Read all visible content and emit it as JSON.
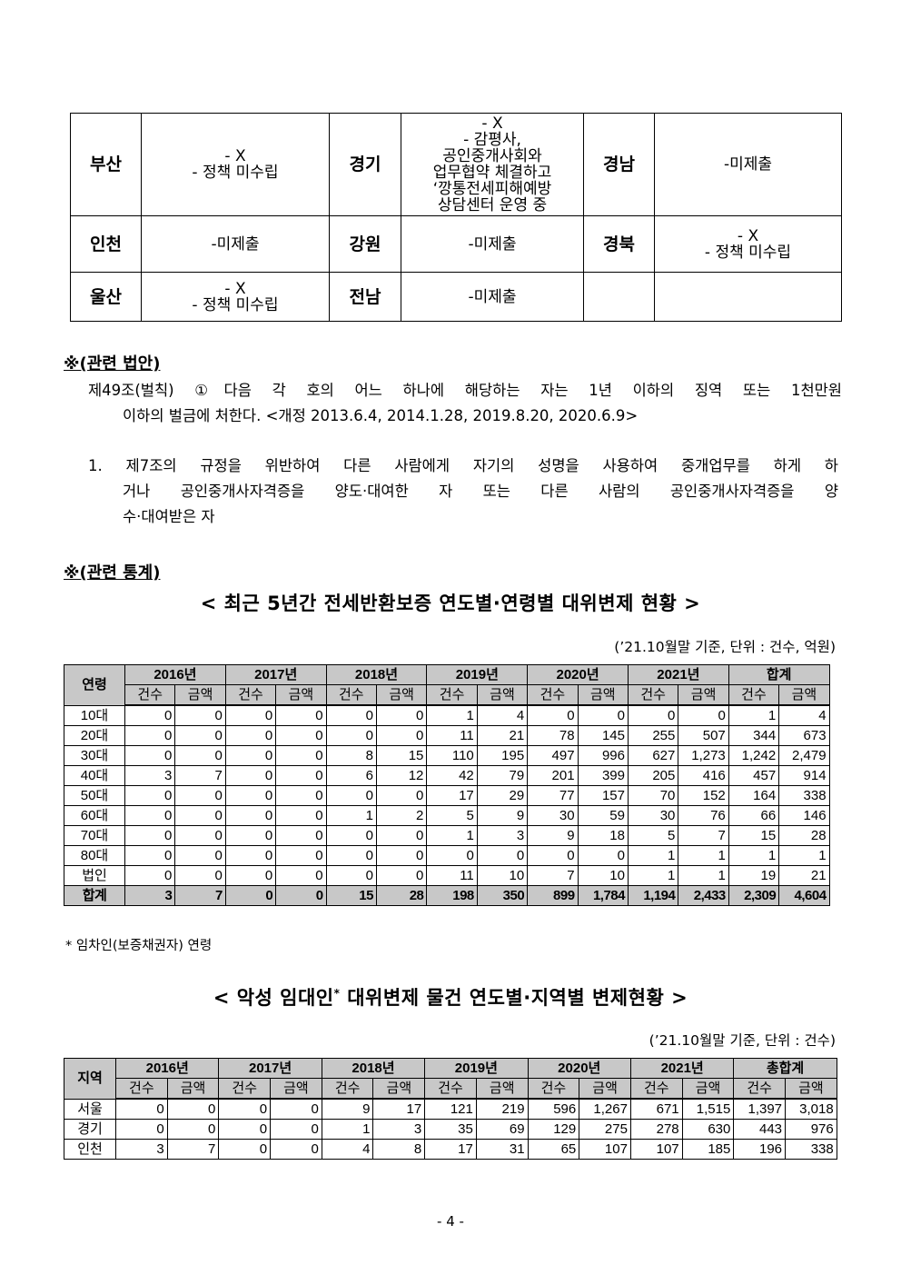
{
  "region_table": {
    "rows": [
      [
        {
          "name": "부산",
          "text": "- X\n- 정책 미수립"
        },
        {
          "name": "경기",
          "text": "- X\n- 감평사,\n공인중개사회와\n업무협약 체결하고\n‘깡통전세피해예방\n상담센터 운영 중"
        },
        {
          "name": "경남",
          "text": "-미제출"
        }
      ],
      [
        {
          "name": "인천",
          "text": "-미제출"
        },
        {
          "name": "강원",
          "text": "-미제출"
        },
        {
          "name": "경북",
          "text": "- X\n- 정책 미수립"
        }
      ],
      [
        {
          "name": "울산",
          "text": "- X\n- 정책 미수립"
        },
        {
          "name": "전남",
          "text": "-미제출"
        },
        {
          "name": "",
          "text": ""
        }
      ]
    ]
  },
  "law_section": {
    "heading": "※(관련 법안)",
    "article_line1": "제49조(벌칙) ①다음 각 호의 어느 하나에 해당하는 자는 1년 이하의 징역 또는 1천만원",
    "article_line2": "이하의 벌금에 처한다. <개정 2013.6.4, 2014.1.28, 2019.8.20, 2020.6.9>",
    "item_line1": "1. 제7조의 규정을 위반하여 다른 사람에게 자기의 성명을 사용하여 중개업무를 하게 하",
    "item_line2": "거나 공인중개사자격증을 양도·대여한 자 또는 다른 사람의 공인중개사자격증을 양",
    "item_line3": "수·대여받은 자"
  },
  "stats_section": {
    "heading": "※(관련 통계)"
  },
  "table1": {
    "title": "< 최근 5년간 전세반환보증 연도별·연령별 대위변제 현황 >",
    "note": "(’21.10월말 기준, 단위 : 건수, 억원)",
    "corner": "연령",
    "years": [
      "2016년",
      "2017년",
      "2018년",
      "2019년",
      "2020년",
      "2021년",
      "합계"
    ],
    "sub": [
      "건수",
      "금액"
    ],
    "rows": [
      [
        "10대",
        "0",
        "0",
        "0",
        "0",
        "0",
        "0",
        "1",
        "4",
        "0",
        "0",
        "0",
        "0",
        "1",
        "4"
      ],
      [
        "20대",
        "0",
        "0",
        "0",
        "0",
        "0",
        "0",
        "11",
        "21",
        "78",
        "145",
        "255",
        "507",
        "344",
        "673"
      ],
      [
        "30대",
        "0",
        "0",
        "0",
        "0",
        "8",
        "15",
        "110",
        "195",
        "497",
        "996",
        "627",
        "1,273",
        "1,242",
        "2,479"
      ],
      [
        "40대",
        "3",
        "7",
        "0",
        "0",
        "6",
        "12",
        "42",
        "79",
        "201",
        "399",
        "205",
        "416",
        "457",
        "914"
      ],
      [
        "50대",
        "0",
        "0",
        "0",
        "0",
        "0",
        "0",
        "17",
        "29",
        "77",
        "157",
        "70",
        "152",
        "164",
        "338"
      ],
      [
        "60대",
        "0",
        "0",
        "0",
        "0",
        "1",
        "2",
        "5",
        "9",
        "30",
        "59",
        "30",
        "76",
        "66",
        "146"
      ],
      [
        "70대",
        "0",
        "0",
        "0",
        "0",
        "0",
        "0",
        "1",
        "3",
        "9",
        "18",
        "5",
        "7",
        "15",
        "28"
      ],
      [
        "80대",
        "0",
        "0",
        "0",
        "0",
        "0",
        "0",
        "0",
        "0",
        "0",
        "0",
        "1",
        "1",
        "1",
        "1"
      ],
      [
        "법인",
        "0",
        "0",
        "0",
        "0",
        "0",
        "0",
        "11",
        "10",
        "7",
        "10",
        "1",
        "1",
        "19",
        "21"
      ]
    ],
    "total": [
      "합계",
      "3",
      "7",
      "0",
      "0",
      "15",
      "28",
      "198",
      "350",
      "899",
      "1,784",
      "1,194",
      "2,433",
      "2,309",
      "4,604"
    ],
    "footnote": "* 임차인(보증채권자) 연령"
  },
  "table2": {
    "title": "< 악성 임대인",
    "title_sup": "*",
    "title_rest": " 대위변제 물건 연도별·지역별 변제현황 >",
    "note": "(’21.10월말 기준, 단위 : 건수)",
    "corner": "지역",
    "years": [
      "2016년",
      "2017년",
      "2018년",
      "2019년",
      "2020년",
      "2021년",
      "총합계"
    ],
    "sub": [
      "건수",
      "금액"
    ],
    "rows": [
      [
        "서울",
        "0",
        "0",
        "0",
        "0",
        "9",
        "17",
        "121",
        "219",
        "596",
        "1,267",
        "671",
        "1,515",
        "1,397",
        "3,018"
      ],
      [
        "경기",
        "0",
        "0",
        "0",
        "0",
        "1",
        "3",
        "35",
        "69",
        "129",
        "275",
        "278",
        "630",
        "443",
        "976"
      ],
      [
        "인천",
        "3",
        "7",
        "0",
        "0",
        "4",
        "8",
        "17",
        "31",
        "65",
        "107",
        "107",
        "185",
        "196",
        "338"
      ]
    ]
  },
  "page_number": "- 4 -"
}
